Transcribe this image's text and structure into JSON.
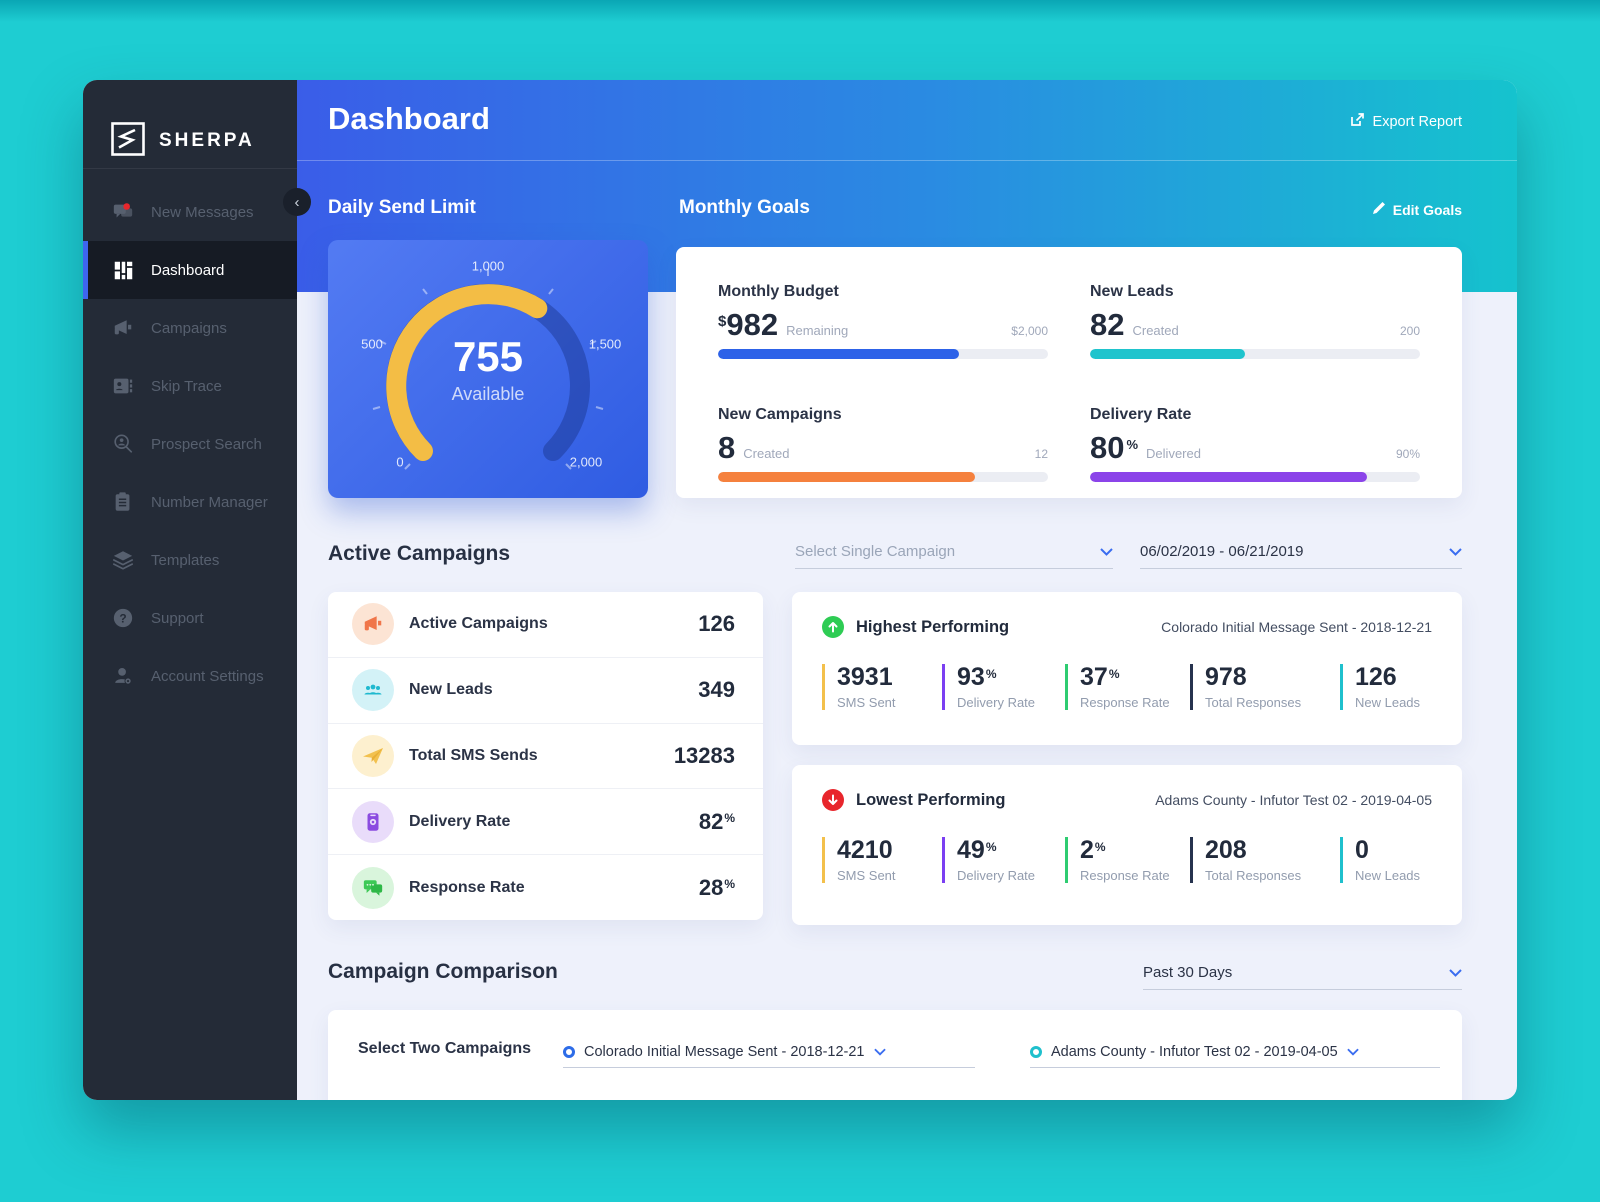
{
  "sidebar": {
    "brand": "SHERPA",
    "items": [
      {
        "label": "New Messages",
        "active": false
      },
      {
        "label": "Dashboard",
        "active": true
      },
      {
        "label": "Campaigns",
        "active": false
      },
      {
        "label": "Skip Trace",
        "active": false
      },
      {
        "label": "Prospect Search",
        "active": false
      },
      {
        "label": "Number Manager",
        "active": false
      },
      {
        "label": "Templates",
        "active": false
      },
      {
        "label": "Support",
        "active": false
      },
      {
        "label": "Account Settings",
        "active": false
      }
    ]
  },
  "header": {
    "title": "Dashboard",
    "export_label": "Export Report",
    "daily_send_limit_title": "Daily Send Limit",
    "monthly_goals_title": "Monthly Goals",
    "edit_goals_label": "Edit Goals"
  },
  "gauge": {
    "value": "755",
    "caption": "Available",
    "ticks": {
      "t0": "0",
      "t500": "500",
      "t1000": "1,000",
      "t1500": "1,500",
      "t2000": "2,000"
    },
    "arc_color": "#f3bd45"
  },
  "monthly_goals": {
    "items": [
      {
        "title": "Monthly Budget",
        "prefix": "$",
        "value": "982",
        "suffix": "",
        "sub": "Remaining",
        "target": "$2,000",
        "fill_pct": 73,
        "color": "#2d62e8"
      },
      {
        "title": "New Leads",
        "prefix": "",
        "value": "82",
        "suffix": "",
        "sub": "Created",
        "target": "200",
        "fill_pct": 47,
        "color": "#1fc4cd"
      },
      {
        "title": "New Campaigns",
        "prefix": "",
        "value": "8",
        "suffix": "",
        "sub": "Created",
        "target": "12",
        "fill_pct": 78,
        "color": "#f5813e"
      },
      {
        "title": "Delivery Rate",
        "prefix": "",
        "value": "80",
        "suffix": "%",
        "sub": "Delivered",
        "target": "90%",
        "fill_pct": 84,
        "color": "#8b44e9"
      }
    ]
  },
  "active_campaigns": {
    "title": "Active Campaigns",
    "rows": [
      {
        "label": "Active Campaigns",
        "value": "126",
        "suffix": "",
        "icon_bg": "#fce4d4",
        "icon_color": "#f0764a"
      },
      {
        "label": "New Leads",
        "value": "349",
        "suffix": "",
        "icon_bg": "#d3f2f7",
        "icon_color": "#1fb9cf"
      },
      {
        "label": "Total SMS Sends",
        "value": "13283",
        "suffix": "",
        "icon_bg": "#fdf0cf",
        "icon_color": "#f2c14e"
      },
      {
        "label": "Delivery Rate",
        "value": "82",
        "suffix": "%",
        "icon_bg": "#e9dcfa",
        "icon_color": "#8b4be0"
      },
      {
        "label": "Response Rate",
        "value": "28",
        "suffix": "%",
        "icon_bg": "#d9f5dc",
        "icon_color": "#3dc956"
      }
    ]
  },
  "filters": {
    "campaign_placeholder": "Select Single Campaign",
    "date_range": "06/02/2019  -  06/21/2019"
  },
  "highest": {
    "title": "Highest Performing",
    "badge_color": "#2ecc54",
    "campaign": "Colorado Initial Message Sent - 2018-12-21",
    "stats": [
      {
        "value": "3931",
        "suffix": "",
        "label": "SMS Sent",
        "color": "#f3c04b"
      },
      {
        "value": "93",
        "suffix": "%",
        "label": "Delivery Rate",
        "color": "#7b3ff2"
      },
      {
        "value": "37",
        "suffix": "%",
        "label": "Response Rate",
        "color": "#2ecc71"
      },
      {
        "value": "978",
        "suffix": "",
        "label": "Total Responses",
        "color": "#26324e"
      },
      {
        "value": "126",
        "suffix": "",
        "label": "New Leads",
        "color": "#1fc0cd"
      }
    ]
  },
  "lowest": {
    "title": "Lowest Performing",
    "badge_color": "#e8262c",
    "campaign": "Adams County - Infutor Test 02 - 2019-04-05",
    "stats": [
      {
        "value": "4210",
        "suffix": "",
        "label": "SMS Sent",
        "color": "#f3c04b"
      },
      {
        "value": "49",
        "suffix": "%",
        "label": "Delivery Rate",
        "color": "#7b3ff2"
      },
      {
        "value": "2",
        "suffix": "%",
        "label": "Response Rate",
        "color": "#2ecc71"
      },
      {
        "value": "208",
        "suffix": "",
        "label": "Total Responses",
        "color": "#26324e"
      },
      {
        "value": "0",
        "suffix": "",
        "label": "New Leads",
        "color": "#1fc0cd"
      }
    ]
  },
  "comparison": {
    "title": "Campaign Comparison",
    "period": "Past 30 Days",
    "select_label": "Select Two Campaigns",
    "campaign_a": "Colorado Initial Message Sent - 2018-12-21",
    "campaign_a_color": "#2d6ce8",
    "campaign_b": "Adams County - Infutor Test 02 - 2019-04-05",
    "campaign_b_color": "#1fc0cd"
  },
  "colors": {
    "page_background": "#1ecdd2",
    "sidebar_background": "#242b37",
    "header_gradient_start": "#3a5de8",
    "header_gradient_end": "#15c3ce",
    "active_nav_accent": "#3e66ee",
    "gauge_card_gradient_start": "#537bf3",
    "gauge_card_gradient_end": "#2f5ce2"
  }
}
